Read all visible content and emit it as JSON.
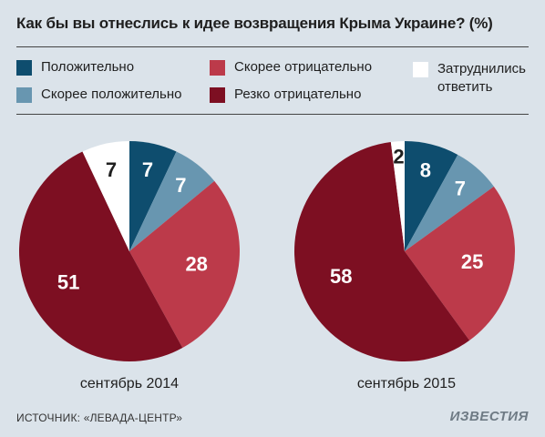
{
  "title": "Как бы вы отнеслись к идее возвращения Крыма Украине? (%)",
  "legend": [
    {
      "label": "Положительно",
      "color": "#0e4d6e"
    },
    {
      "label": "Скорее положительно",
      "color": "#6896b0"
    },
    {
      "label": "Скорее отрицательно",
      "color": "#bc3a4a"
    },
    {
      "label": "Резко отрицательно",
      "color": "#7d0f22"
    },
    {
      "label": "Затруднились ответить",
      "color": "#ffffff"
    }
  ],
  "chart_data": [
    {
      "type": "pie",
      "caption": "сентябрь 2014",
      "slices": [
        {
          "category": "Положительно",
          "value": 7,
          "color": "#0e4d6e"
        },
        {
          "category": "Скорее положительно",
          "value": 7,
          "color": "#6896b0"
        },
        {
          "category": "Скорее отрицательно",
          "value": 28,
          "color": "#bc3a4a"
        },
        {
          "category": "Резко отрицательно",
          "value": 51,
          "color": "#7d0f22"
        },
        {
          "category": "Затруднились ответить",
          "value": 7,
          "color": "#ffffff"
        }
      ]
    },
    {
      "type": "pie",
      "caption": "сентябрь 2015",
      "slices": [
        {
          "category": "Положительно",
          "value": 8,
          "color": "#0e4d6e"
        },
        {
          "category": "Скорее положительно",
          "value": 7,
          "color": "#6896b0"
        },
        {
          "category": "Скорее отрицательно",
          "value": 25,
          "color": "#bc3a4a"
        },
        {
          "category": "Резко отрицательно",
          "value": 58,
          "color": "#7d0f22"
        },
        {
          "category": "Затруднились ответить",
          "value": 2,
          "color": "#ffffff"
        }
      ]
    }
  ],
  "footer": {
    "source": "ИСТОЧНИК: «ЛЕВАДА-ЦЕНТР»",
    "logo": "ИЗВЕСТИЯ"
  }
}
